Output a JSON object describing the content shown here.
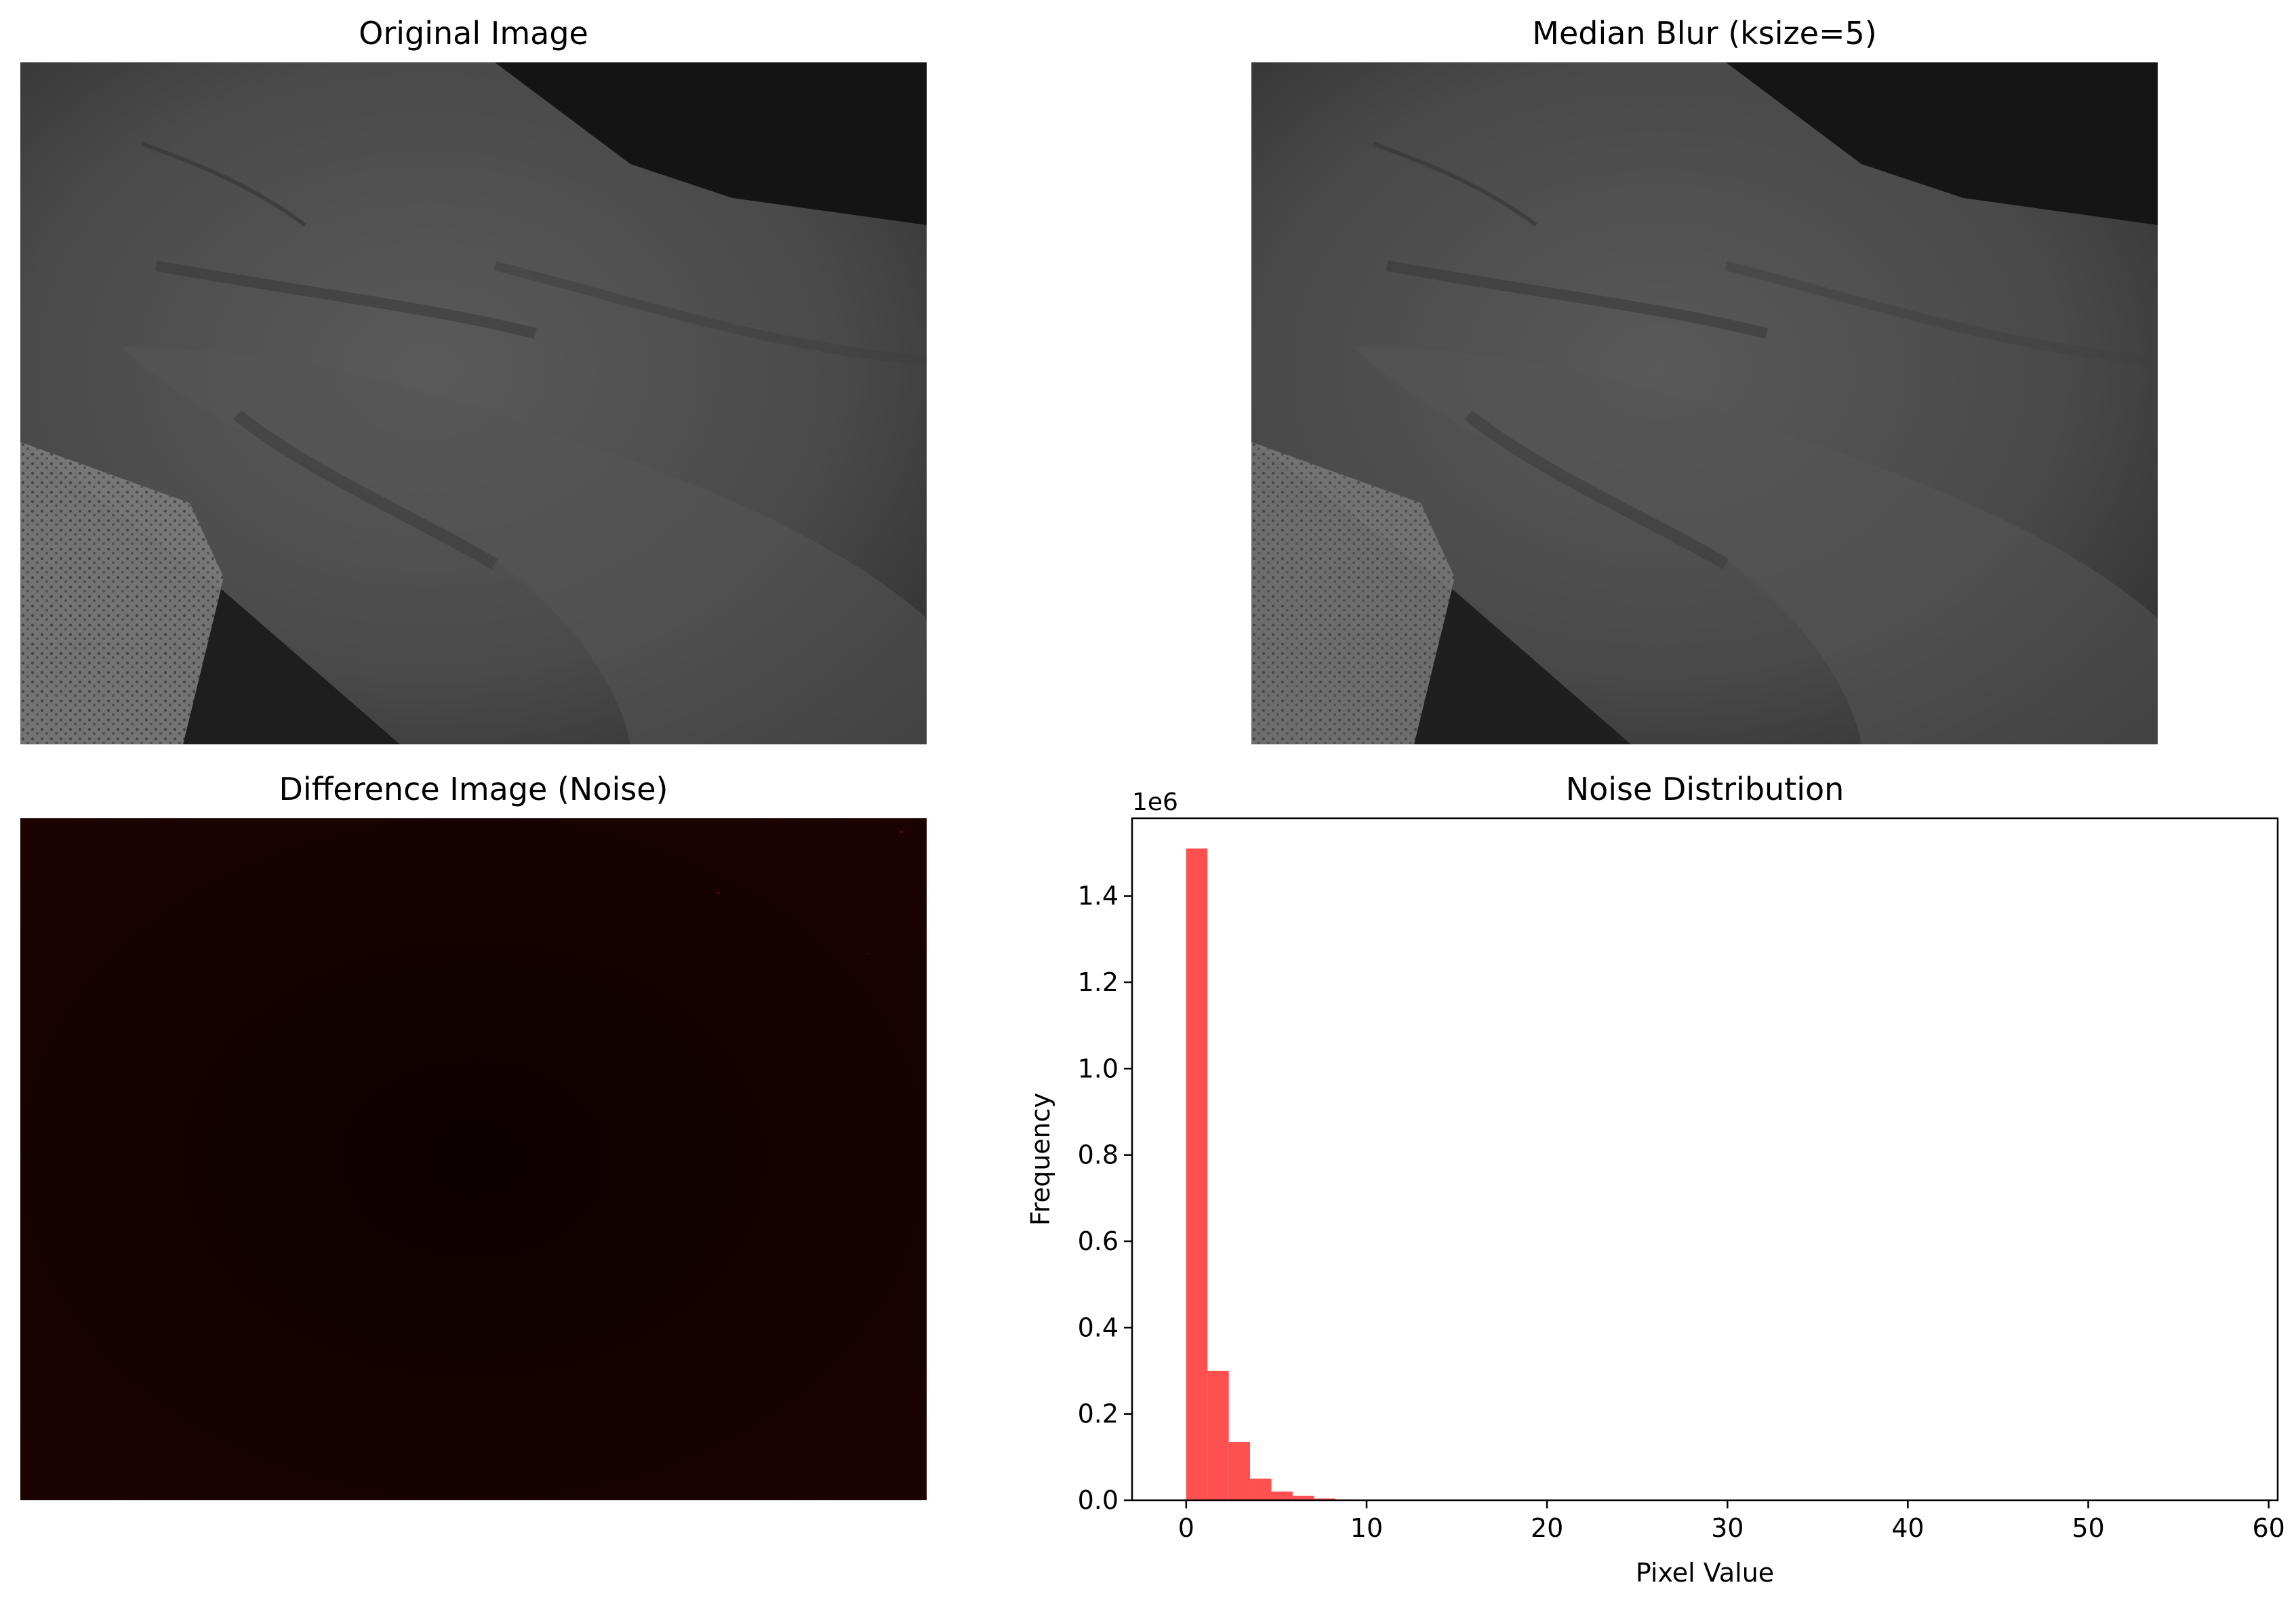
{
  "panels": {
    "original": {
      "title": "Original Image"
    },
    "median": {
      "title": "Median Blur (ksize=5)"
    },
    "difference": {
      "title": "Difference Image (Noise)"
    }
  },
  "chart_data": {
    "type": "bar",
    "title": "Noise Distribution",
    "xlabel": "Pixel Value",
    "ylabel": "Frequency",
    "y_multiplier_label": "1e6",
    "xlim": [
      -3,
      60.5
    ],
    "ylim": [
      0,
      1.58
    ],
    "xticks": [
      0,
      10,
      20,
      30,
      40,
      50,
      60
    ],
    "xtick_labels": [
      "0",
      "10",
      "20",
      "30",
      "40",
      "50",
      "60"
    ],
    "yticks": [
      0.0,
      0.2,
      0.4,
      0.6,
      0.8,
      1.0,
      1.2,
      1.4
    ],
    "ytick_labels": [
      "0.0",
      "0.2",
      "0.4",
      "0.6",
      "0.8",
      "1.0",
      "1.2",
      "1.4"
    ],
    "bin_width": 1.18,
    "bin_edges_start": 0,
    "values": [
      1.51,
      0.3,
      0.135,
      0.05,
      0.02,
      0.01,
      0.004,
      0.002,
      0.001,
      0.0005
    ],
    "unit_scale": 1000000,
    "color": "#ff5050",
    "grid": false
  }
}
